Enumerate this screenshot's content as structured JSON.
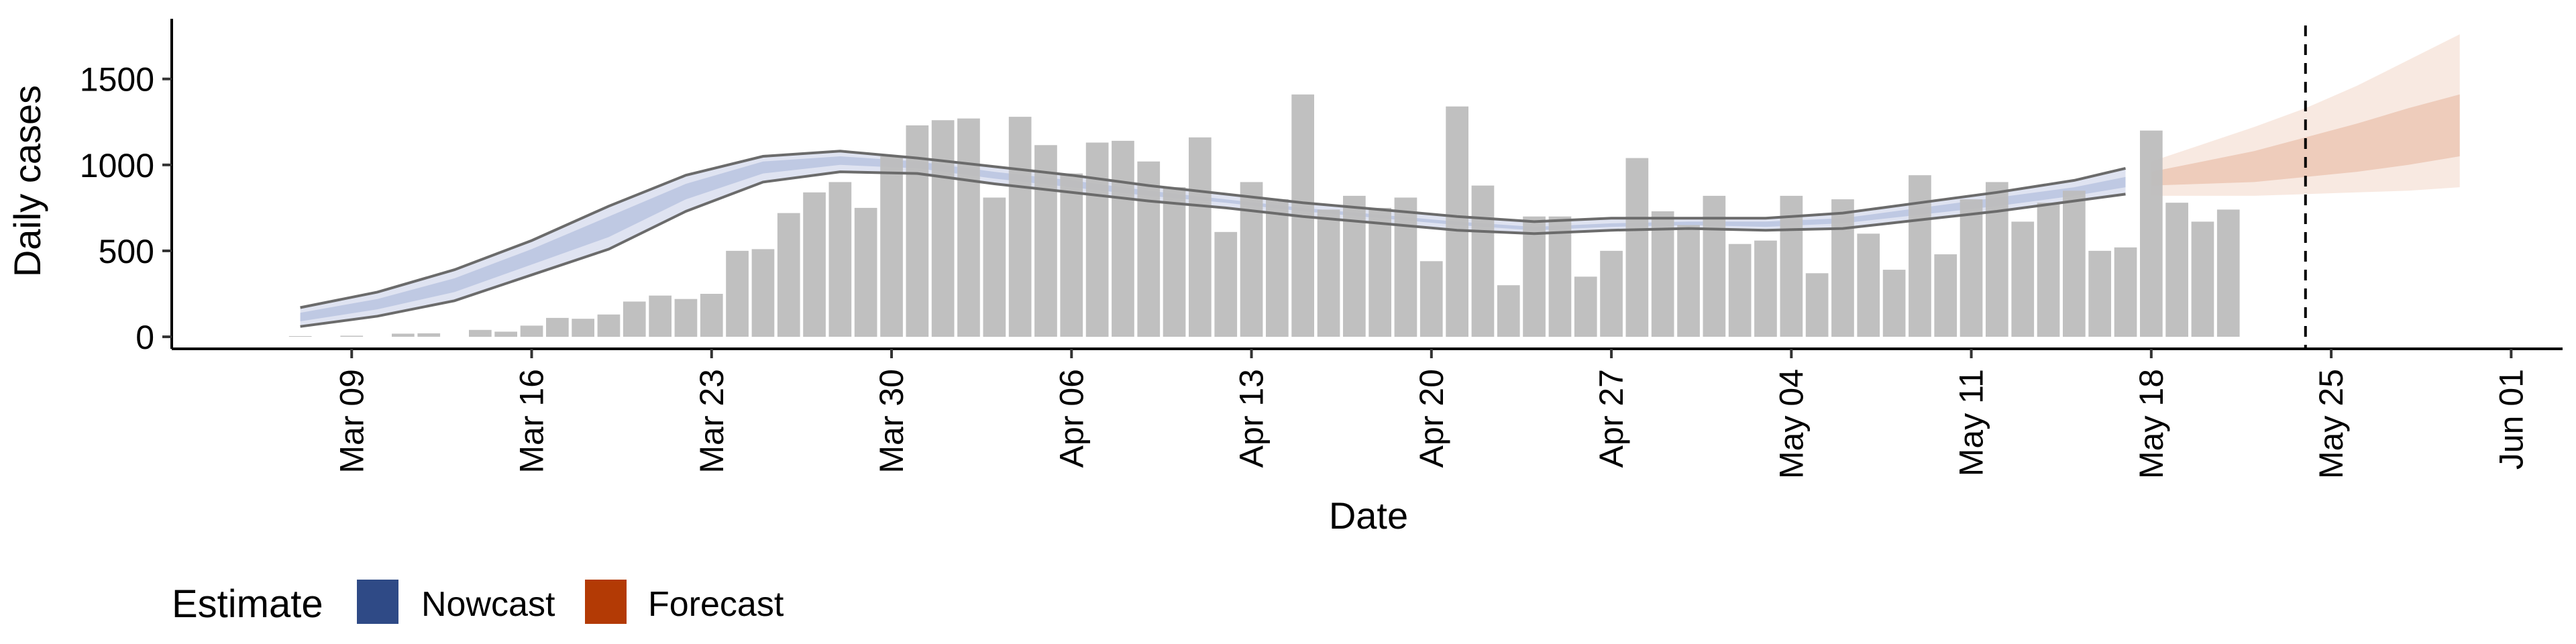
{
  "chart_data": {
    "type": "bar",
    "ylabel": "Daily cases",
    "xlabel": "Date",
    "ylim": [
      -70,
      1850
    ],
    "xlim": [
      "2020-03-02",
      "2020-06-03"
    ],
    "y_ticks": [
      0,
      500,
      1000,
      1500
    ],
    "x_ticks": [
      {
        "date": "2020-03-09",
        "label": "Mar 09"
      },
      {
        "date": "2020-03-16",
        "label": "Mar 16"
      },
      {
        "date": "2020-03-23",
        "label": "Mar 23"
      },
      {
        "date": "2020-03-30",
        "label": "Mar 30"
      },
      {
        "date": "2020-04-06",
        "label": "Apr 06"
      },
      {
        "date": "2020-04-13",
        "label": "Apr 13"
      },
      {
        "date": "2020-04-20",
        "label": "Apr 20"
      },
      {
        "date": "2020-04-27",
        "label": "Apr 27"
      },
      {
        "date": "2020-05-04",
        "label": "May 04"
      },
      {
        "date": "2020-05-11",
        "label": "May 11"
      },
      {
        "date": "2020-05-18",
        "label": "May 18"
      },
      {
        "date": "2020-05-25",
        "label": "May 25"
      },
      {
        "date": "2020-06-01",
        "label": "Jun 01"
      }
    ],
    "grid": false,
    "legend": {
      "position": "bottom-left",
      "title": "Estimate",
      "items": [
        {
          "label": "Nowcast",
          "color": "#2f4a86"
        },
        {
          "label": "Forecast",
          "color": "#b33a05"
        }
      ]
    },
    "reference_line": {
      "date": "2020-05-24",
      "style": "dashed",
      "color": "#000000"
    },
    "bar_color": "#bdbdbd",
    "bars": {
      "dates": [
        "2020-03-07",
        "2020-03-08",
        "2020-03-09",
        "2020-03-10",
        "2020-03-11",
        "2020-03-12",
        "2020-03-13",
        "2020-03-14",
        "2020-03-15",
        "2020-03-16",
        "2020-03-17",
        "2020-03-18",
        "2020-03-19",
        "2020-03-20",
        "2020-03-21",
        "2020-03-22",
        "2020-03-23",
        "2020-03-24",
        "2020-03-25",
        "2020-03-26",
        "2020-03-27",
        "2020-03-28",
        "2020-03-29",
        "2020-03-30",
        "2020-03-31",
        "2020-04-01",
        "2020-04-02",
        "2020-04-03",
        "2020-04-04",
        "2020-04-05",
        "2020-04-06",
        "2020-04-07",
        "2020-04-08",
        "2020-04-09",
        "2020-04-10",
        "2020-04-11",
        "2020-04-12",
        "2020-04-13",
        "2020-04-14",
        "2020-04-15",
        "2020-04-16",
        "2020-04-17",
        "2020-04-18",
        "2020-04-19",
        "2020-04-20",
        "2020-04-21",
        "2020-04-22",
        "2020-04-23",
        "2020-04-24",
        "2020-04-25",
        "2020-04-26",
        "2020-04-27",
        "2020-04-28",
        "2020-04-29",
        "2020-04-30",
        "2020-05-01",
        "2020-05-02",
        "2020-05-03",
        "2020-05-04",
        "2020-05-05",
        "2020-05-06",
        "2020-05-07",
        "2020-05-08",
        "2020-05-09",
        "2020-05-10",
        "2020-05-11",
        "2020-05-12",
        "2020-05-13",
        "2020-05-14",
        "2020-05-15",
        "2020-05-16",
        "2020-05-17",
        "2020-05-18",
        "2020-05-19",
        "2020-05-20",
        "2020-05-21",
        "2020-05-22",
        "2020-05-23",
        "2020-05-24"
      ],
      "values": [
        4,
        0,
        6,
        0,
        18,
        20,
        0,
        40,
        30,
        65,
        110,
        105,
        130,
        205,
        240,
        220,
        250,
        500,
        510,
        720,
        840,
        900,
        750,
        1050,
        1230,
        1260,
        1270,
        810,
        1280,
        1115,
        950,
        1130,
        1140,
        1020,
        870,
        1160,
        610,
        900,
        800,
        1410,
        740,
        820,
        750,
        810,
        440,
        1340,
        880,
        300,
        700,
        700,
        350,
        500,
        1040,
        730,
        650,
        820,
        540,
        560,
        820,
        370,
        800,
        600,
        390,
        940,
        480,
        800,
        900,
        670,
        780,
        850,
        500,
        520,
        1200,
        780,
        670,
        740,
        0,
        0,
        0
      ]
    },
    "nowcast": {
      "dates": [
        "2020-03-07",
        "2020-03-10",
        "2020-03-13",
        "2020-03-16",
        "2020-03-19",
        "2020-03-22",
        "2020-03-25",
        "2020-03-28",
        "2020-03-31",
        "2020-04-03",
        "2020-04-06",
        "2020-04-09",
        "2020-04-12",
        "2020-04-15",
        "2020-04-18",
        "2020-04-21",
        "2020-04-24",
        "2020-04-27",
        "2020-04-30",
        "2020-05-03",
        "2020-05-06",
        "2020-05-09",
        "2020-05-12",
        "2020-05-15",
        "2020-05-17"
      ],
      "lower90": [
        60,
        120,
        210,
        360,
        510,
        730,
        900,
        960,
        950,
        890,
        840,
        790,
        750,
        700,
        660,
        620,
        600,
        620,
        630,
        620,
        630,
        680,
        730,
        790,
        830
      ],
      "upper90": [
        170,
        260,
        390,
        560,
        760,
        940,
        1050,
        1080,
        1040,
        990,
        940,
        880,
        830,
        780,
        740,
        700,
        670,
        690,
        690,
        690,
        720,
        780,
        840,
        910,
        980
      ],
      "lower50": [
        90,
        160,
        260,
        420,
        580,
        800,
        950,
        1000,
        980,
        920,
        870,
        820,
        780,
        730,
        690,
        650,
        620,
        640,
        650,
        640,
        660,
        710,
        760,
        820,
        870
      ],
      "upper50": [
        140,
        220,
        340,
        510,
        700,
        890,
        1020,
        1050,
        1020,
        960,
        910,
        850,
        800,
        750,
        710,
        670,
        640,
        660,
        670,
        670,
        690,
        750,
        810,
        870,
        930
      ]
    },
    "forecast": {
      "dates": [
        "2020-05-18",
        "2020-05-20",
        "2020-05-22",
        "2020-05-24",
        "2020-05-26",
        "2020-05-28",
        "2020-05-30"
      ],
      "lower90": [
        820,
        820,
        820,
        830,
        840,
        850,
        870
      ],
      "upper90": [
        1020,
        1120,
        1220,
        1330,
        1460,
        1610,
        1760
      ],
      "lower50": [
        880,
        890,
        900,
        930,
        960,
        1000,
        1050
      ],
      "upper50": [
        960,
        1020,
        1080,
        1160,
        1240,
        1330,
        1410
      ]
    }
  }
}
